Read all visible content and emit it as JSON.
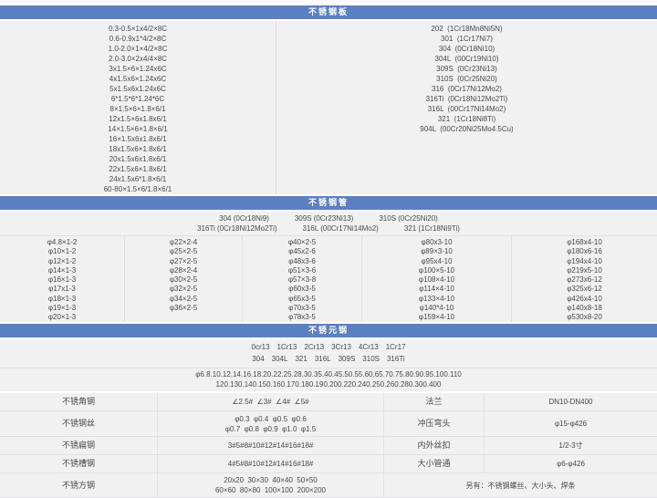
{
  "palette": {
    "accent": "#5c81c2",
    "cell_bg": "#f1f1f2",
    "text": "#4a4a4a"
  },
  "plate": {
    "header": "不锈钢板",
    "sizes": [
      "0.3-0.5×1x4/2×8C",
      "0.6-0.9x1*4/2×8C",
      "1.0-2.0×1×4/2×8C",
      "2.0-3.0×2x4/4×8C",
      "3x1.5×6×1.24x6C",
      "4x1.5x6×1.24x6C",
      "5x1.5x6x1.24x6C",
      "6*1.5*6*1.24*6C",
      "8×1.5×6×1.8×6/1",
      "12x1.5×6x1.8x6/1",
      "14×1.5×6×1.8×6/1",
      "16×1.5x6x1.8x6/1",
      "18x1.5x6×1.8x6/1",
      "20x1.5x6x1.8x6/1",
      "22x1.5x6×1.8x6/1",
      "24x1.5x6*1.8×6/1",
      "60-80×1.5×6/1.8×6/1"
    ],
    "grades": [
      "202  (1Cr18Mn8Ni5N)",
      "301  (1Cr17Ni7)",
      "304  (0Cr18Ni10)",
      "304L  (00Cr19Ni10)",
      "309S  (0Cr23Ni13)",
      "310S  (0Cr25Ni20)",
      "316  (0Cr17Ni12Mo2)",
      "316Ti  (0Cr18Ni12Mo2Ti)",
      "316L  (00Cr17Ni14Mo2)",
      "321  (1Cr18Ni8Ti)",
      "904L  (00Cr20Ni25Mo4.5Cu)"
    ]
  },
  "pipe": {
    "header": "不锈钢管",
    "grades_line1": [
      "304  (0Cr18Ni9)",
      "309S  (0Cr23Ni13)",
      "310S  (0Cr25Ni20)"
    ],
    "grades_line2": [
      "316Ti  (0Cr18Ni12Mo2Ti)",
      "316L  (00Cr17Ni14Mo2)",
      "321  (1Cr18Ni9Ti)"
    ],
    "columns": [
      [
        "φ4.8×1-2",
        "φ10×1-2",
        "φ12×1-2",
        "φ14×1-3",
        "φ16×1-3",
        "φ17x1-3",
        "φ18×1-3",
        "φ19×1-3",
        "φ20×1-3"
      ],
      [
        "φ22×2-4",
        "φ25×2-5",
        "φ27×2-5",
        "φ28×2-4",
        "φ30×2-5",
        "φ32×2-5",
        "φ34×2-5",
        "φ36×2-5"
      ],
      [
        "φ40×2-5",
        "φ45x2-6",
        "φ48x3-6",
        "φ51×3-6",
        "φ57×3-8",
        "φ60x3-5",
        "φ65x3-5",
        "φ70x3-5",
        "φ78x3-5"
      ],
      [
        "φ80x3-10",
        "φ89×3-10",
        "φ95x4-10",
        "φ100×5-10",
        "φ108×4-10",
        "φ114×4-10",
        "φ133×4-10",
        "φ140*4-10",
        "φ159×4-10"
      ],
      [
        "φ168x4-10",
        "φ180x6-16",
        "φ194x4-10",
        "φ219x5-10",
        "φ273x6-12",
        "φ325x6-12",
        "φ426x4-10",
        "φ140x8-18",
        "φ530x8-20"
      ]
    ]
  },
  "round": {
    "header": "不锈元钢",
    "grades_line1": [
      "0cr13",
      "1Cr13",
      "2Cr13",
      "3Cr13",
      "4Cr13",
      "1Cr17"
    ],
    "grades_line2": [
      "304",
      "304L",
      "321",
      "316L",
      "309S",
      "310S",
      "316Ti"
    ],
    "sizes_line1": "φ6.8.10.12.14.16.18.20.22.25.28.30.35.40.45.50.55.60.65.70.75.80.90.95.100.110",
    "sizes_line2": "120.130.140.150.160.170.180.190.200.220.240.250.260.280.300.400"
  },
  "bottom": {
    "rows": [
      {
        "label": "不锈角钢",
        "value": "∠2.5#  ∠3#  ∠4#  ∠5#",
        "label2": "法兰",
        "value2": "DN10-DN400"
      },
      {
        "label": "不锈钢丝",
        "value": "φ0.3  φ0.4  φ0.5  φ0.6",
        "value_line2": "φ0.7  φ0.8  φ0.9  φ1.0  φ1.5",
        "label2": "冲压弯头",
        "value2": "φ15-φ426"
      },
      {
        "label": "不锈扁钢",
        "value": "3#5#8#10#12#14#16#18#",
        "label2": "内外丝扣",
        "value2": "1/2-3寸"
      },
      {
        "label": "不锈槽钢",
        "value": "4#5#8#10#12#14#16#18#",
        "label2": "大小管通",
        "value2": "φ6-φ426"
      },
      {
        "label": "不锈方钢",
        "value": "20x20  30×30  40×40  50×50",
        "value_line2": "60×60  80×80  100×100  200×200",
        "note": "另有：不锈钢螺丝、大小头、焊条"
      }
    ]
  }
}
